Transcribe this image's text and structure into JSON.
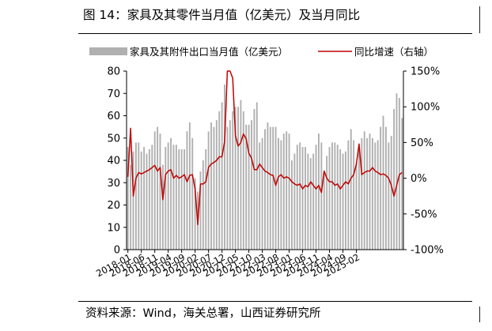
{
  "figure": {
    "title": "图 14：家具及其零件当月值（亿美元）及当月同比",
    "source": "资料来源：Wind，海关总署，山西证券研究所"
  },
  "chart_data": {
    "type": "bar",
    "left_axis": {
      "min": 0,
      "max": 80,
      "ticks": [
        "0",
        "10",
        "20",
        "30",
        "40",
        "50",
        "60",
        "70",
        "80"
      ]
    },
    "right_axis": {
      "min": -100,
      "max": 150,
      "unit": "%",
      "ticks": [
        "-100%",
        "-50%",
        "0%",
        "50%",
        "100%",
        "150%"
      ]
    },
    "legend": {
      "placement": "top",
      "items": [
        "家具及其附件出口当月值（亿美元）",
        "同比增速（右轴）"
      ]
    },
    "x_tick_labels": [
      "2018-01",
      "2018-06",
      "2018-11",
      "2019-04",
      "2019-09",
      "2020-02",
      "2020-07",
      "2020-12",
      "2021-05",
      "2021-10",
      "2022-03",
      "2022-08",
      "2023-01",
      "2023-06",
      "2023-11",
      "2024-04",
      "2024-09",
      "2025-02"
    ],
    "series": [
      {
        "name": "家具及其附件出口当月值（亿美元）",
        "kind": "bar",
        "axis": "left",
        "color": "#b0b0b0",
        "values": [
          46,
          38,
          44,
          48,
          48,
          44,
          46,
          43,
          45,
          47,
          53,
          55,
          52,
          38,
          46,
          48,
          50,
          47,
          47,
          45,
          45,
          45,
          53,
          57,
          50,
          32,
          26,
          35,
          40,
          45,
          53,
          57,
          55,
          58,
          62,
          66,
          74,
          55,
          58,
          62,
          64,
          64,
          67,
          62,
          56,
          56,
          58,
          63,
          66,
          48,
          50,
          54,
          57,
          55,
          55,
          55,
          50,
          49,
          52,
          53,
          52,
          40,
          43,
          47,
          48,
          46,
          46,
          43,
          41,
          43,
          47,
          52,
          48,
          34,
          42,
          46,
          48,
          48,
          47,
          45,
          43,
          44,
          49,
          54,
          49,
          39,
          45,
          50,
          53,
          50,
          52,
          50,
          48,
          49,
          55,
          60,
          55,
          48,
          51,
          63,
          70,
          68,
          59
        ]
      },
      {
        "name": "同比增速（右轴）",
        "kind": "line",
        "axis": "right",
        "color": "#c00000",
        "values": [
          2,
          70,
          -25,
          0,
          8,
          6,
          8,
          10,
          12,
          15,
          18,
          10,
          15,
          -30,
          5,
          10,
          12,
          0,
          4,
          0,
          2,
          5,
          -5,
          4,
          5,
          -15,
          -65,
          -8,
          -8,
          -5,
          15,
          20,
          22,
          25,
          30,
          30,
          52,
          150,
          150,
          140,
          60,
          45,
          50,
          62,
          55,
          35,
          28,
          12,
          12,
          20,
          15,
          10,
          8,
          5,
          4,
          -10,
          2,
          5,
          0,
          2,
          0,
          -5,
          -8,
          -10,
          -8,
          -15,
          -10,
          -12,
          -5,
          -10,
          -15,
          -10,
          -20,
          10,
          0,
          -5,
          -5,
          -10,
          -8,
          -15,
          -10,
          -5,
          -8,
          0,
          5,
          20,
          48,
          5,
          8,
          10,
          10,
          15,
          10,
          8,
          5,
          6,
          4,
          0,
          -10,
          -25,
          -10,
          5,
          8
        ]
      }
    ]
  }
}
